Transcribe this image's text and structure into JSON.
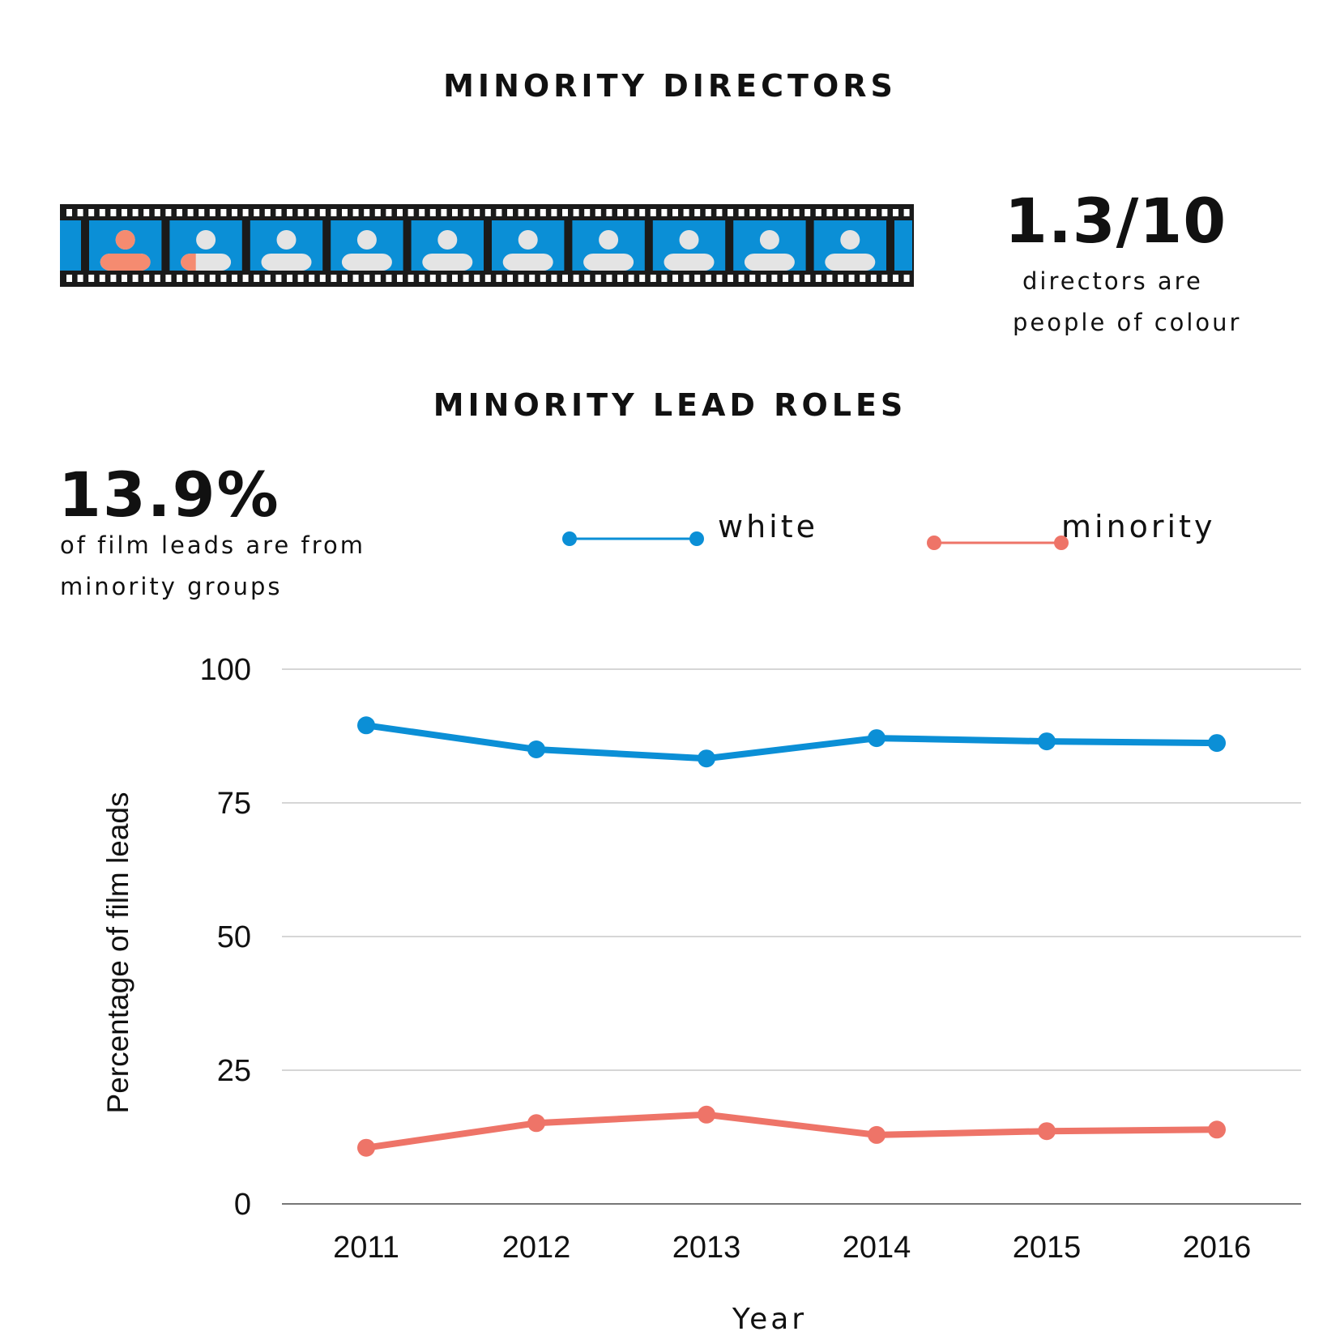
{
  "directors": {
    "heading": "MINORITY DIRECTORS",
    "stat_value": "1.3/10",
    "stat_line1": "directors are",
    "stat_line2": "people of colour",
    "minority_share": 0.13,
    "frame_count": 10,
    "colors": {
      "film": "#1a1a1a",
      "frame": "#0b8fd6",
      "person": "#e4e4e4",
      "minority": "#f58b70"
    },
    "icon": "person-icon"
  },
  "leads": {
    "heading": "MINORITY LEAD ROLES",
    "stat_value": "13.9%",
    "stat_line1": "of film leads are from",
    "stat_line2": "minority groups"
  },
  "legend": {
    "white_label": "white",
    "minority_label": "minority"
  },
  "chart_data": {
    "type": "line",
    "x": [
      "2011",
      "2012",
      "2013",
      "2014",
      "2015",
      "2016"
    ],
    "series": [
      {
        "name": "white",
        "color": "#0b8fd6",
        "values": [
          89.5,
          85,
          83.3,
          87.1,
          86.5,
          86.2
        ]
      },
      {
        "name": "minority",
        "color": "#ee7468",
        "values": [
          10.5,
          15.1,
          16.7,
          12.9,
          13.6,
          13.9
        ]
      }
    ],
    "xlabel": "Year",
    "ylabel": "Percentage of film leads",
    "ylim": [
      0,
      100
    ],
    "yticks": [
      0,
      25,
      50,
      75,
      100
    ],
    "grid": true
  }
}
